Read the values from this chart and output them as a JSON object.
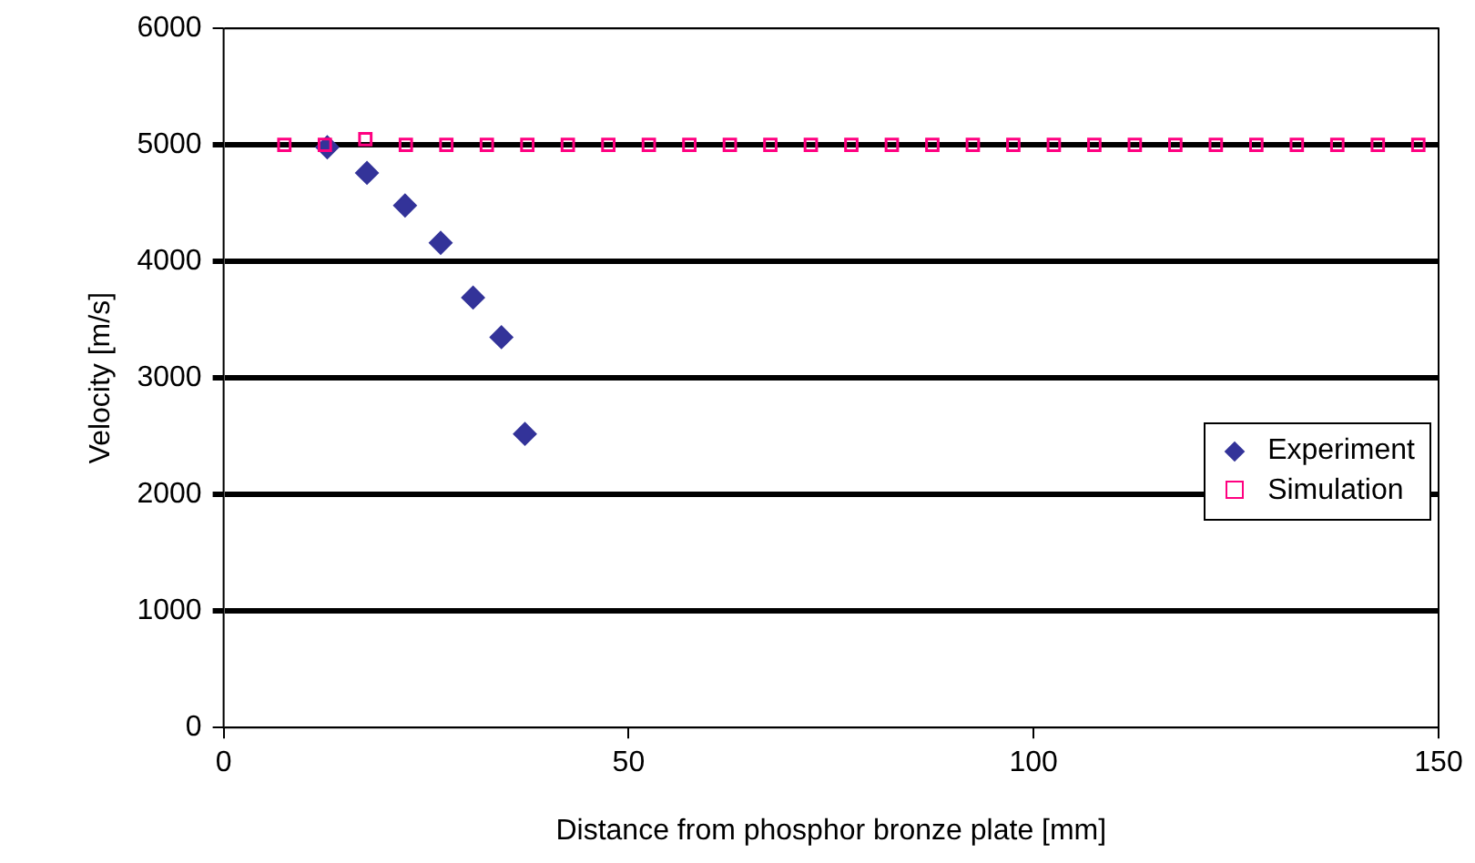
{
  "chart_data": {
    "type": "scatter",
    "xlabel": "Distance from phosphor bronze plate [mm]",
    "ylabel": "Velocity [m/s]",
    "xlim": [
      0,
      150
    ],
    "xticks": [
      0,
      50,
      100,
      150
    ],
    "ylim": [
      0,
      6000
    ],
    "yticks": [
      0,
      1000,
      2000,
      3000,
      4000,
      5000,
      6000
    ],
    "grid": "y",
    "legend": "right",
    "series": [
      {
        "name": "Experiment",
        "color": "#333399",
        "marker": "diamond",
        "x": [
          12.8,
          17.7,
          22.4,
          26.8,
          30.8,
          34.3,
          37.2
        ],
        "values": [
          4980,
          4760,
          4480,
          4160,
          3690,
          3350,
          2520
        ]
      },
      {
        "name": "Simulation",
        "color": "#ff0080",
        "marker": "square",
        "x": [
          7.5,
          12.5,
          17.5,
          22.5,
          27.5,
          32.5,
          37.5,
          42.5,
          47.5,
          52.5,
          57.5,
          62.5,
          67.5,
          72.5,
          77.5,
          82.5,
          87.5,
          92.5,
          97.5,
          102.5,
          107.5,
          112.5,
          117.5,
          122.5,
          127.5,
          132.5,
          137.5,
          142.5,
          147.5
        ],
        "values": [
          5000,
          5000,
          5050,
          5000,
          5000,
          5000,
          5000,
          5000,
          5000,
          5000,
          5000,
          5000,
          5000,
          5000,
          5000,
          5000,
          5000,
          5000,
          5000,
          5000,
          5000,
          5000,
          5000,
          5000,
          5000,
          5000,
          5000,
          5000,
          5000
        ]
      }
    ]
  }
}
